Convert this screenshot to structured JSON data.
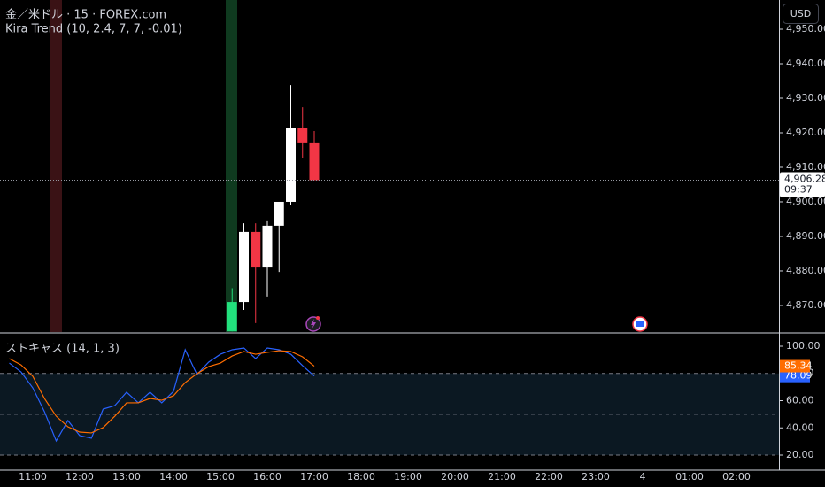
{
  "header": {
    "symbol": "金／米ドル · 15 · FOREX.com",
    "indicator": "Kira Trend (10, 2.4, 7, 7, -0.01)",
    "currency": "USD"
  },
  "x_axis": {
    "categories": [
      null,
      null,
      "11:00",
      null,
      null,
      null,
      "12:00",
      null,
      null,
      null,
      "13:00",
      null,
      null,
      null,
      "14:00",
      null,
      null,
      null,
      "15:00",
      null,
      null,
      null,
      "16:00",
      null,
      null,
      null,
      "17:00",
      null,
      null,
      null,
      "18:00",
      null,
      null,
      null,
      "19:00",
      null,
      null,
      null,
      "20:00",
      null,
      null,
      null,
      "21:00",
      null,
      null,
      null,
      "22:00",
      null,
      null,
      null,
      "23:00",
      null,
      null,
      null,
      "4",
      null,
      null,
      null,
      "01:00",
      null,
      null,
      null,
      "02:00",
      null,
      null,
      null
    ]
  },
  "chart_data": [
    {
      "type": "candlestick",
      "open": [
        null,
        null,
        null,
        null,
        null,
        null,
        null,
        null,
        null,
        null,
        null,
        null,
        null,
        null,
        null,
        null,
        null,
        null,
        null,
        4862.5,
        4871,
        4891.3,
        4881,
        4893.1,
        4900,
        4921.3,
        4917.2,
        null,
        null,
        null,
        null,
        null,
        null,
        null,
        null,
        null,
        null,
        null,
        null,
        null,
        null,
        null,
        null,
        null,
        null,
        null,
        null,
        null,
        null,
        null,
        null,
        null,
        null,
        null,
        null,
        null,
        null,
        null,
        null,
        null,
        null,
        null,
        null,
        null,
        null,
        null
      ],
      "high": [
        null,
        null,
        null,
        null,
        null,
        null,
        null,
        null,
        null,
        null,
        null,
        null,
        null,
        null,
        null,
        null,
        null,
        null,
        null,
        4875,
        4893.8,
        4893.8,
        4894.4,
        4900,
        4933.8,
        4927.4,
        4920.5,
        null,
        null,
        null,
        null,
        null,
        null,
        null,
        null,
        null,
        null,
        null,
        null,
        null,
        null,
        null,
        null,
        null,
        null,
        null,
        null,
        null,
        null,
        null,
        null,
        null,
        null,
        null,
        null,
        null,
        null,
        null,
        null,
        null,
        null,
        null,
        null,
        null,
        null,
        null
      ],
      "low": [
        null,
        null,
        null,
        null,
        null,
        null,
        null,
        null,
        null,
        null,
        null,
        null,
        null,
        null,
        null,
        null,
        null,
        null,
        null,
        4862.5,
        4868.7,
        4864.9,
        4872.6,
        4879.7,
        4899,
        4912.8,
        4906.28,
        null,
        null,
        null,
        null,
        null,
        null,
        null,
        null,
        null,
        null,
        null,
        null,
        null,
        null,
        null,
        null,
        null,
        null,
        null,
        null,
        null,
        null,
        null,
        null,
        null,
        null,
        null,
        null,
        null,
        null,
        null,
        null,
        null,
        null,
        null,
        null,
        null,
        null,
        null
      ],
      "close": [
        null,
        null,
        null,
        null,
        null,
        null,
        null,
        null,
        null,
        null,
        null,
        null,
        null,
        null,
        null,
        null,
        null,
        null,
        null,
        4871,
        4891.3,
        4881,
        4893.1,
        4900,
        4921.3,
        4917.2,
        4906.28,
        null,
        null,
        null,
        null,
        null,
        null,
        null,
        null,
        null,
        null,
        null,
        null,
        null,
        null,
        null,
        null,
        null,
        null,
        null,
        null,
        null,
        null,
        null,
        null,
        null,
        null,
        null,
        null,
        null,
        null,
        null,
        null,
        null,
        null,
        null,
        null,
        null,
        null,
        null
      ],
      "colors": [
        null,
        null,
        null,
        null,
        null,
        null,
        null,
        null,
        null,
        null,
        null,
        null,
        null,
        null,
        null,
        null,
        null,
        null,
        null,
        "#22e07d",
        "#ffffff",
        "#f23645",
        "#ffffff",
        "#ffffff",
        "#ffffff",
        "#f23645",
        "#f23645",
        null,
        null,
        null,
        null,
        null,
        null,
        null,
        null,
        null,
        null,
        null,
        null,
        null,
        null,
        null,
        null,
        null,
        null,
        null,
        null,
        null,
        null,
        null,
        null,
        null,
        null,
        null,
        null,
        null,
        null,
        null,
        null,
        null,
        null,
        null,
        null,
        null,
        null,
        null
      ],
      "ylim": [
        4862.3,
        4958.46
      ],
      "yticks": [
        {
          "value": 4950,
          "label": "4,950.00"
        },
        {
          "value": 4940,
          "label": "4,940.00"
        },
        {
          "value": 4930,
          "label": "4,930.00"
        },
        {
          "value": 4920,
          "label": "4,920.00"
        },
        {
          "value": 4910,
          "label": "4,910.00"
        },
        {
          "value": 4900,
          "label": "4,900.00"
        },
        {
          "value": 4890,
          "label": "4,890.00"
        },
        {
          "value": 4880,
          "label": "4,880.00"
        },
        {
          "value": 4870,
          "label": "4,870.00"
        }
      ],
      "last_price": {
        "value": 4906.28,
        "label": "4,906.28",
        "countdown": "09:37"
      }
    },
    {
      "type": "line",
      "title": "ストキャス (14, 1, 3)",
      "series": [
        {
          "color": "#2962ff",
          "values": [
            87.6,
            81.1,
            69.4,
            51.9,
            30.4,
            45.4,
            34.3,
            32.4,
            53.8,
            56.4,
            66.2,
            58.4,
            66.2,
            58.4,
            66.8,
            97.4,
            79.2,
            88.3,
            94.1,
            97.4,
            98.7,
            90.9,
            98.7,
            97.4,
            94.1,
            85.7,
            78.09,
            null,
            null,
            null,
            null,
            null,
            null,
            null,
            null,
            null,
            null,
            null,
            null,
            null,
            null,
            null,
            null,
            null,
            null,
            null,
            null,
            null,
            null,
            null,
            null,
            null,
            null,
            null,
            null,
            null,
            null,
            null,
            null,
            null,
            null,
            null,
            null,
            null,
            null,
            null
          ]
        },
        {
          "color": "#ff6d00",
          "values": [
            90.9,
            86.3,
            77.9,
            61.6,
            48.6,
            40.8,
            36.9,
            36.3,
            40.2,
            48.6,
            58.4,
            58.4,
            61.6,
            60.3,
            63.6,
            73.3,
            79.8,
            85.0,
            87.6,
            92.8,
            96.1,
            94.1,
            95.5,
            96.7,
            96.1,
            92.2,
            85.34,
            null,
            null,
            null,
            null,
            null,
            null,
            null,
            null,
            null,
            null,
            null,
            null,
            null,
            null,
            null,
            null,
            null,
            null,
            null,
            null,
            null,
            null,
            null,
            null,
            null,
            null,
            null,
            null,
            null,
            null,
            null,
            null,
            null,
            null,
            null,
            null,
            null,
            null,
            null
          ]
        }
      ],
      "hlines": [
        80,
        50,
        20
      ],
      "ylim": [
        9.6,
        109.1
      ],
      "yticks": [
        {
          "value": 100,
          "label": "100.00"
        },
        {
          "value": 80,
          "label": "80.00"
        },
        {
          "value": 60,
          "label": "60.00"
        },
        {
          "value": 40,
          "label": "40.00"
        },
        {
          "value": 20,
          "label": "20.00"
        }
      ]
    }
  ]
}
